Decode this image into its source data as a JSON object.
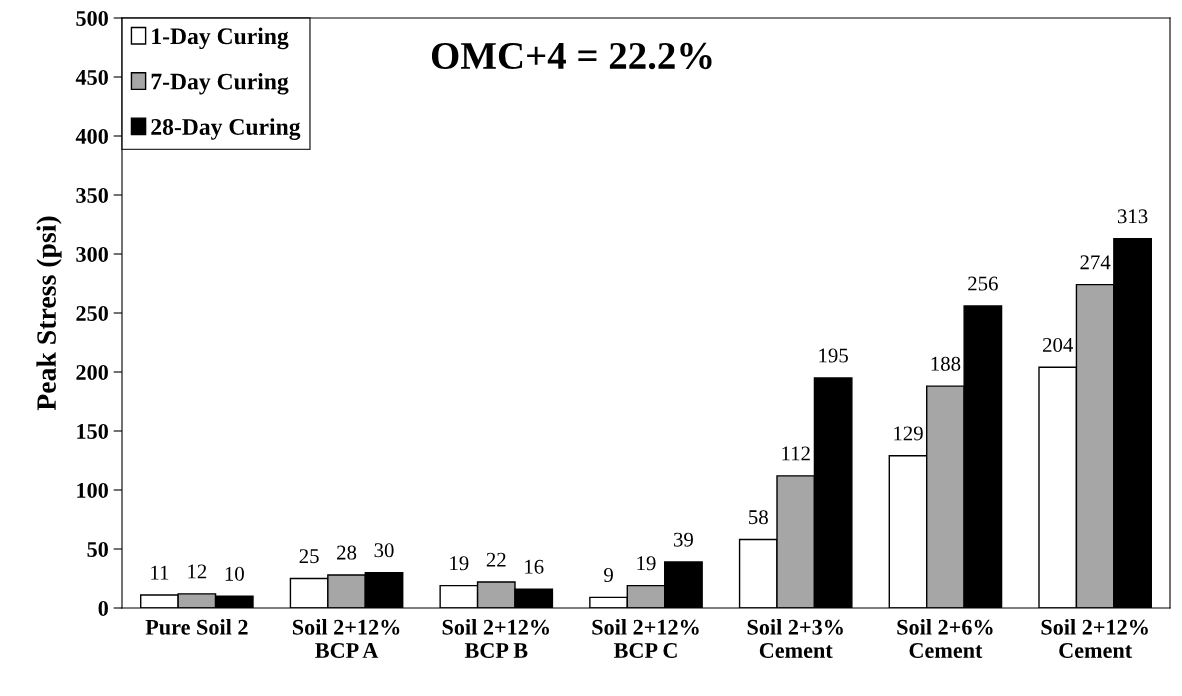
{
  "chart_data": {
    "type": "bar",
    "ylabel": "Peak Stress (psi)",
    "annotations": [
      "OMC+4 = 22.2%"
    ],
    "categories": [
      "Pure Soil 2",
      "Soil 2+12%\nBCP A",
      "Soil 2+12%\nBCP B",
      "Soil 2+12%\nBCP C",
      "Soil 2+3%\nCement",
      "Soil 2+6%\nCement",
      "Soil 2+12%\nCement"
    ],
    "series": [
      {
        "name": "1-Day Curing",
        "color": "#ffffff",
        "values": [
          11,
          25,
          19,
          9,
          58,
          129,
          204
        ]
      },
      {
        "name": "7-Day Curing",
        "color": "#a6a6a6",
        "values": [
          12,
          28,
          22,
          19,
          112,
          188,
          274
        ]
      },
      {
        "name": "28-Day Curing",
        "color": "#000000",
        "values": [
          10,
          30,
          16,
          39,
          195,
          256,
          313
        ]
      }
    ],
    "ylim": [
      0,
      500
    ],
    "yticks": [
      0,
      50,
      100,
      150,
      200,
      250,
      300,
      350,
      400,
      450,
      500
    ],
    "grid": false,
    "legend": "top left",
    "data_labels": true
  }
}
